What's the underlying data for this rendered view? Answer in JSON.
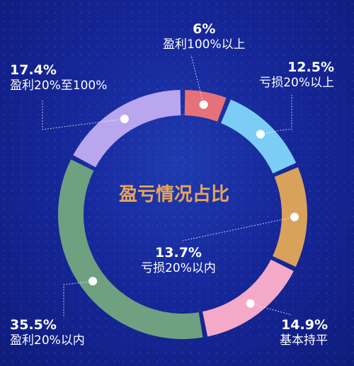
{
  "chart_data": {
    "type": "pie",
    "subtype": "donut",
    "title": "盈亏情况占比",
    "slices": [
      {
        "name": "盈利100%以上",
        "label": "6%",
        "value": 6,
        "color": "#e5717a"
      },
      {
        "name": "亏损20%以上",
        "label": "12.5%",
        "value": 12.5,
        "color": "#7ccdf5"
      },
      {
        "name": "亏损20%以内",
        "label": "13.7%",
        "value": 13.7,
        "color": "#d9a25b"
      },
      {
        "name": "基本持平",
        "label": "14.9%",
        "value": 14.9,
        "color": "#f4a9c8"
      },
      {
        "name": "盈利20%以内",
        "label": "35.5%",
        "value": 35.5,
        "color": "#6fa07f"
      },
      {
        "name": "盈利20%至100%",
        "label": "17.4%",
        "value": 17.4,
        "color": "#b9a6ef"
      }
    ],
    "background_color": "#16279a",
    "title_color": "#e7a55a",
    "legend": "none"
  }
}
